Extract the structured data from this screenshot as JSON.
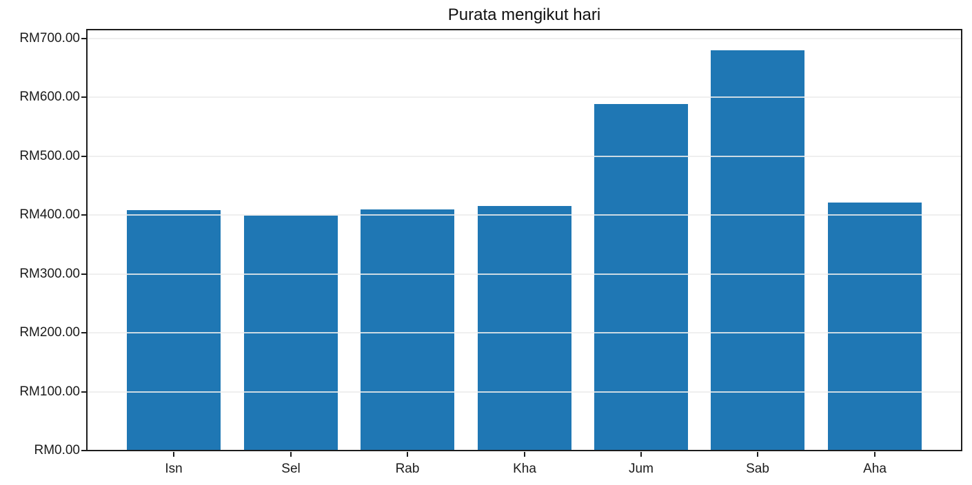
{
  "chart_data": {
    "type": "bar",
    "title": "Purata mengikut hari",
    "categories": [
      "Isn",
      "Sel",
      "Rab",
      "Kha",
      "Jum",
      "Sab",
      "Aha"
    ],
    "values": [
      408,
      399,
      410,
      416,
      589,
      680,
      421
    ],
    "xlabel": "",
    "ylabel": "",
    "y_tick_labels": [
      "RM0.00",
      "RM100.00",
      "RM200.00",
      "RM300.00",
      "RM400.00",
      "RM500.00",
      "RM600.00",
      "RM700.00"
    ],
    "y_tick_values": [
      0,
      100,
      200,
      300,
      400,
      500,
      600,
      700
    ],
    "ylim": [
      0,
      715
    ],
    "currency_prefix": "RM",
    "grid": true,
    "grid_over_bars": true,
    "legend": null,
    "bar_color": "#1f77b4",
    "grid_color": "#ececec",
    "axis_color": "#1c1c1c",
    "text_color": "#1b1b1b",
    "background_color": "#ffffff"
  }
}
